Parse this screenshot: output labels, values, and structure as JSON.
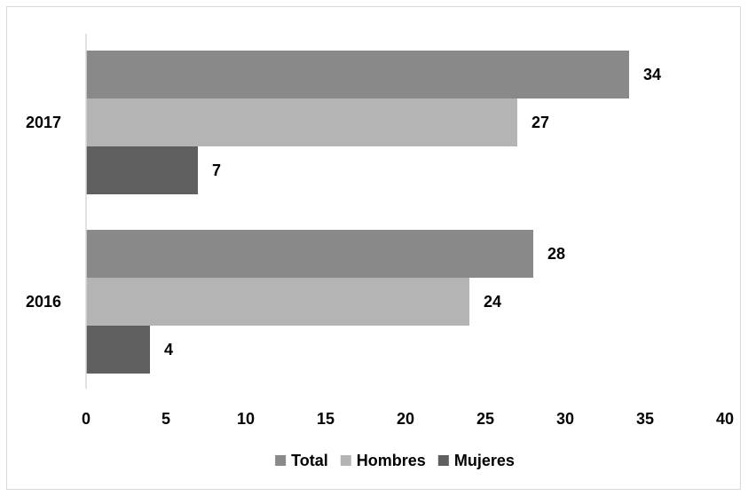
{
  "chart_data": {
    "type": "bar",
    "orientation": "horizontal",
    "categories": [
      "2017",
      "2016"
    ],
    "series": [
      {
        "name": "Total",
        "values": [
          34,
          28
        ],
        "color": "#898989"
      },
      {
        "name": "Hombres",
        "values": [
          27,
          24
        ],
        "color": "#b4b4b4"
      },
      {
        "name": "Mujeres",
        "values": [
          7,
          4
        ],
        "color": "#5f5f5f"
      }
    ],
    "xlim": [
      0,
      40
    ],
    "xticks": [
      0,
      5,
      10,
      15,
      20,
      25,
      30,
      35,
      40
    ],
    "grid": false,
    "legend_position": "bottom",
    "data_labels": true
  }
}
